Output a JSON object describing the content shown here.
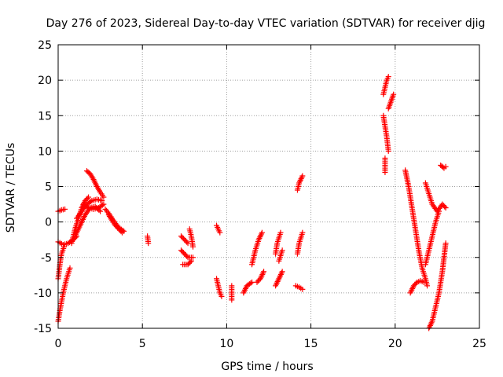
{
  "chart_data": {
    "type": "scatter",
    "title": "Day 276 of 2023, Sidereal Day-to-day VTEC variation (SDTVAR) for receiver djig",
    "xlabel": "GPS time / hours",
    "ylabel": "SDTVAR / TECUs",
    "xlim": [
      0,
      25
    ],
    "ylim": [
      -15,
      25
    ],
    "x_ticks": [
      "0",
      "5",
      "10",
      "15",
      "20",
      "25"
    ],
    "y_ticks": [
      "-15",
      "-10",
      "-5",
      "0",
      "5",
      "10",
      "15",
      "20",
      "25"
    ],
    "grid": true,
    "legend": "none",
    "marker": "plus",
    "color": "#ff0000",
    "segments": [
      {
        "points": [
          [
            0.0,
            -14.0
          ],
          [
            0.1,
            -12.5
          ],
          [
            0.3,
            -10.0
          ],
          [
            0.5,
            -8.0
          ],
          [
            0.7,
            -6.5
          ]
        ]
      },
      {
        "points": [
          [
            0.0,
            -8.0
          ],
          [
            0.1,
            -6.0
          ],
          [
            0.2,
            -4.5
          ],
          [
            0.35,
            -3.5
          ]
        ]
      },
      {
        "points": [
          [
            0.0,
            -2.8
          ],
          [
            0.3,
            -3.2
          ],
          [
            0.6,
            -3.0
          ],
          [
            0.9,
            -2.5
          ],
          [
            1.1,
            -2.0
          ]
        ]
      },
      {
        "points": [
          [
            0.0,
            1.5
          ],
          [
            0.2,
            1.7
          ],
          [
            0.4,
            1.8
          ]
        ]
      },
      {
        "points": [
          [
            0.8,
            -3.0
          ],
          [
            1.0,
            -1.0
          ],
          [
            1.2,
            0.5
          ],
          [
            1.4,
            2.0
          ],
          [
            1.6,
            3.0
          ],
          [
            1.8,
            3.5
          ]
        ]
      },
      {
        "points": [
          [
            1.0,
            -2.0
          ],
          [
            1.3,
            -0.5
          ],
          [
            1.6,
            1.0
          ],
          [
            1.9,
            2.0
          ],
          [
            2.2,
            2.2
          ],
          [
            2.5,
            1.5
          ]
        ]
      },
      {
        "points": [
          [
            1.1,
            0.5
          ],
          [
            1.4,
            1.5
          ],
          [
            1.7,
            2.5
          ],
          [
            2.0,
            3.0
          ],
          [
            2.3,
            3.2
          ],
          [
            2.6,
            3.0
          ]
        ]
      },
      {
        "points": [
          [
            1.5,
            2.5
          ],
          [
            1.8,
            2.0
          ],
          [
            2.1,
            1.8
          ],
          [
            2.4,
            2.0
          ],
          [
            2.7,
            2.5
          ]
        ]
      },
      {
        "points": [
          [
            1.7,
            7.2
          ],
          [
            1.9,
            6.8
          ],
          [
            2.1,
            6.0
          ],
          [
            2.3,
            5.0
          ],
          [
            2.5,
            4.2
          ],
          [
            2.7,
            3.5
          ]
        ]
      },
      {
        "points": [
          [
            2.8,
            1.8
          ],
          [
            3.0,
            1.2
          ],
          [
            3.2,
            0.5
          ],
          [
            3.4,
            -0.2
          ],
          [
            3.6,
            -0.8
          ],
          [
            3.9,
            -1.3
          ]
        ]
      },
      {
        "points": [
          [
            3.0,
            1.0
          ],
          [
            3.2,
            0.2
          ],
          [
            3.4,
            -0.5
          ],
          [
            3.6,
            -1.0
          ],
          [
            3.8,
            -1.5
          ]
        ]
      },
      {
        "points": [
          [
            5.3,
            -2.0
          ],
          [
            5.35,
            -3.0
          ]
        ]
      },
      {
        "points": [
          [
            7.3,
            -2.0
          ],
          [
            7.5,
            -2.5
          ],
          [
            7.7,
            -3.0
          ]
        ]
      },
      {
        "points": [
          [
            7.3,
            -4.0
          ],
          [
            7.5,
            -4.5
          ],
          [
            7.7,
            -5.0
          ],
          [
            8.0,
            -5.0
          ]
        ]
      },
      {
        "points": [
          [
            7.4,
            -6.0
          ],
          [
            7.7,
            -6.0
          ],
          [
            7.9,
            -5.5
          ]
        ]
      },
      {
        "points": [
          [
            7.8,
            -1.0
          ],
          [
            7.9,
            -2.0
          ],
          [
            8.0,
            -3.5
          ]
        ]
      },
      {
        "points": [
          [
            9.4,
            -0.5
          ],
          [
            9.5,
            -1.0
          ],
          [
            9.6,
            -1.5
          ]
        ]
      },
      {
        "points": [
          [
            9.4,
            -8.0
          ],
          [
            9.5,
            -9.0
          ],
          [
            9.6,
            -10.0
          ],
          [
            9.7,
            -10.5
          ]
        ]
      },
      {
        "points": [
          [
            10.3,
            -9.0
          ],
          [
            10.3,
            -11.0
          ]
        ]
      },
      {
        "points": [
          [
            11.0,
            -10.0
          ],
          [
            11.2,
            -9.0
          ],
          [
            11.5,
            -8.5
          ]
        ]
      },
      {
        "points": [
          [
            11.5,
            -6.0
          ],
          [
            11.7,
            -4.0
          ],
          [
            11.9,
            -2.5
          ],
          [
            12.1,
            -1.5
          ]
        ]
      },
      {
        "points": [
          [
            11.8,
            -8.5
          ],
          [
            12.0,
            -8.0
          ],
          [
            12.2,
            -7.0
          ]
        ]
      },
      {
        "points": [
          [
            12.9,
            -4.5
          ],
          [
            13.0,
            -3.0
          ],
          [
            13.2,
            -1.5
          ]
        ]
      },
      {
        "points": [
          [
            12.9,
            -9.0
          ],
          [
            13.1,
            -8.0
          ],
          [
            13.3,
            -7.0
          ]
        ]
      },
      {
        "points": [
          [
            13.1,
            -5.5
          ],
          [
            13.3,
            -4.0
          ]
        ]
      },
      {
        "points": [
          [
            14.2,
            -4.5
          ],
          [
            14.3,
            -3.0
          ],
          [
            14.5,
            -1.5
          ]
        ]
      },
      {
        "points": [
          [
            14.1,
            -9.0
          ],
          [
            14.3,
            -9.2
          ],
          [
            14.5,
            -9.5
          ]
        ]
      },
      {
        "points": [
          [
            14.2,
            4.5
          ],
          [
            14.3,
            5.5
          ],
          [
            14.5,
            6.5
          ]
        ]
      },
      {
        "points": [
          [
            19.3,
            18.0
          ],
          [
            19.4,
            19.0
          ],
          [
            19.5,
            20.0
          ],
          [
            19.6,
            20.5
          ]
        ]
      },
      {
        "points": [
          [
            19.3,
            15.0
          ],
          [
            19.4,
            13.5
          ],
          [
            19.5,
            12.0
          ],
          [
            19.6,
            10.0
          ]
        ]
      },
      {
        "points": [
          [
            19.4,
            9.0
          ],
          [
            19.4,
            7.0
          ]
        ]
      },
      {
        "points": [
          [
            19.6,
            16.0
          ],
          [
            19.9,
            18.0
          ]
        ]
      },
      {
        "points": [
          [
            20.6,
            7.3
          ],
          [
            20.8,
            5.0
          ],
          [
            21.0,
            2.0
          ],
          [
            21.2,
            -1.0
          ],
          [
            21.4,
            -4.0
          ],
          [
            21.6,
            -6.5
          ],
          [
            21.8,
            -8.0
          ],
          [
            21.9,
            -9.0
          ]
        ]
      },
      {
        "points": [
          [
            20.9,
            -10.0
          ],
          [
            21.1,
            -9.0
          ],
          [
            21.3,
            -8.5
          ],
          [
            21.5,
            -8.3
          ],
          [
            21.7,
            -8.5
          ]
        ]
      },
      {
        "points": [
          [
            21.8,
            5.5
          ],
          [
            22.0,
            4.0
          ],
          [
            22.2,
            2.5
          ],
          [
            22.5,
            1.5
          ],
          [
            22.8,
            2.5
          ],
          [
            23.0,
            2.0
          ]
        ]
      },
      {
        "points": [
          [
            22.0,
            -15.0
          ],
          [
            22.2,
            -14.0
          ],
          [
            22.4,
            -12.0
          ],
          [
            22.6,
            -10.0
          ],
          [
            22.8,
            -7.0
          ],
          [
            23.0,
            -3.0
          ]
        ]
      },
      {
        "points": [
          [
            21.8,
            -6.0
          ],
          [
            22.0,
            -4.0
          ],
          [
            22.2,
            -2.0
          ],
          [
            22.4,
            0.0
          ],
          [
            22.6,
            1.5
          ]
        ]
      },
      {
        "points": [
          [
            22.7,
            8.0
          ],
          [
            22.9,
            7.6
          ],
          [
            23.0,
            7.8
          ]
        ]
      }
    ]
  }
}
